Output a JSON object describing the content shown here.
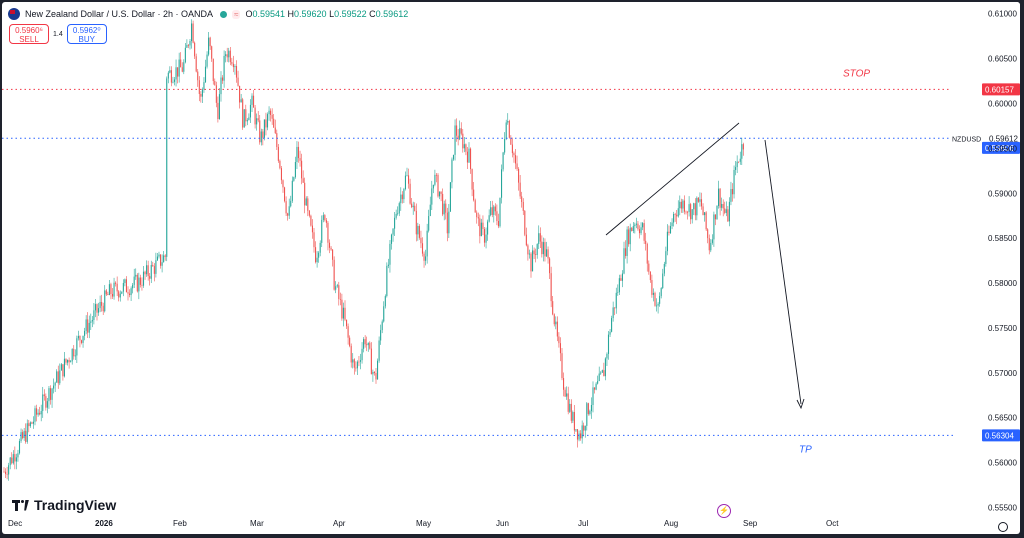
{
  "header": {
    "title": "New Zealand Dollar / U.S. Dollar · 2h · OANDA",
    "ohlc": {
      "o_label": "O",
      "o": "0.59541",
      "h_label": "H",
      "h": "0.59620",
      "l_label": "L",
      "l": "0.59522",
      "c_label": "C",
      "c": "0.59612"
    }
  },
  "trade": {
    "sell_price": "0.5960⁶",
    "sell_label": "SELL",
    "spread": "1.4",
    "buy_price": "0.5962⁰",
    "buy_label": "BUY"
  },
  "brand": {
    "name": "TradingView"
  },
  "chart_data": {
    "type": "candlestick",
    "symbol": "NZDUSD",
    "ylim": [
      0.5545,
      0.6113
    ],
    "y_ticks": [
      "0.61000",
      "0.60500",
      "0.60000",
      "0.59500",
      "0.59000",
      "0.58500",
      "0.58000",
      "0.57500",
      "0.57000",
      "0.56500",
      "0.56000",
      "0.55500"
    ],
    "x_ticks": [
      "Dec",
      "2026",
      "Feb",
      "Mar",
      "Apr",
      "May",
      "Jun",
      "Jul",
      "Aug",
      "Sep",
      "Oct"
    ],
    "price_path": [
      [
        "Dec",
        0.559
      ],
      [
        "Dec",
        0.569
      ],
      [
        "Dec",
        0.5745
      ],
      [
        "Dec",
        0.579
      ],
      [
        "Dec",
        0.58
      ],
      [
        "Dec",
        0.583
      ],
      [
        "2026",
        0.5785
      ],
      [
        "2026",
        0.5755
      ],
      [
        "2026",
        0.5795
      ],
      [
        "2026",
        0.585
      ],
      [
        "2026",
        0.58
      ],
      [
        "2026",
        0.574
      ],
      [
        "2026",
        0.577
      ],
      [
        "2026",
        0.576
      ],
      [
        "2026",
        0.58
      ],
      [
        "2026",
        0.583
      ],
      [
        "2026",
        0.59
      ],
      [
        "2026",
        0.596
      ],
      [
        "Feb",
        0.604
      ],
      [
        "Feb",
        0.609
      ],
      [
        "Feb",
        0.6
      ],
      [
        "Feb",
        0.607
      ],
      [
        "Feb",
        0.599
      ],
      [
        "Feb",
        0.606
      ],
      [
        "Feb",
        0.605
      ],
      [
        "Feb",
        0.598
      ],
      [
        "Feb",
        0.6
      ],
      [
        "Mar",
        0.596
      ],
      [
        "Mar",
        0.599
      ],
      [
        "Mar",
        0.594
      ],
      [
        "Mar",
        0.587
      ],
      [
        "Mar",
        0.595
      ],
      [
        "Mar",
        0.588
      ],
      [
        "Mar",
        0.583
      ],
      [
        "Mar",
        0.588
      ],
      [
        "Mar",
        0.58
      ],
      [
        "Apr",
        0.576
      ],
      [
        "Apr",
        0.57
      ],
      [
        "Apr",
        0.574
      ],
      [
        "Apr",
        0.569
      ],
      [
        "Apr",
        0.58
      ],
      [
        "Apr",
        0.588
      ],
      [
        "Apr",
        0.592
      ],
      [
        "Apr",
        0.586
      ],
      [
        "May",
        0.583
      ],
      [
        "May",
        0.592
      ],
      [
        "May",
        0.59
      ],
      [
        "May",
        0.586
      ],
      [
        "May",
        0.597
      ],
      [
        "May",
        0.596
      ],
      [
        "May",
        0.594
      ],
      [
        "May",
        0.587
      ],
      [
        "May",
        0.585
      ],
      [
        "May",
        0.588
      ],
      [
        "May",
        0.587
      ],
      [
        "Jun",
        0.599
      ],
      [
        "Jun",
        0.594
      ],
      [
        "Jun",
        0.588
      ],
      [
        "Jun",
        0.582
      ],
      [
        "Jun",
        0.585
      ],
      [
        "Jun",
        0.583
      ],
      [
        "Jun",
        0.575
      ],
      [
        "Jun",
        0.569
      ],
      [
        "Jun",
        0.565
      ],
      [
        "Jun",
        0.563
      ],
      [
        "Jul",
        0.566
      ],
      [
        "Jul",
        0.568
      ],
      [
        "Jul",
        0.57
      ],
      [
        "Jul",
        0.576
      ],
      [
        "Jul",
        0.58
      ],
      [
        "Jul",
        0.585
      ],
      [
        "Jul",
        0.587
      ],
      [
        "Jul",
        0.586
      ],
      [
        "Jul",
        0.58
      ],
      [
        "Jul",
        0.577
      ],
      [
        "Jul",
        0.584
      ],
      [
        "Aug",
        0.588
      ],
      [
        "Aug",
        0.589
      ],
      [
        "Aug",
        0.588
      ],
      [
        "Aug",
        0.589
      ],
      [
        "Aug",
        0.584
      ],
      [
        "Aug",
        0.59
      ],
      [
        "Aug",
        0.587
      ],
      [
        "Aug",
        0.593
      ],
      [
        "Aug",
        0.5961
      ]
    ],
    "last_price": "0.59606",
    "last_price_seconds": "",
    "symbol_close": "0.59612",
    "levels": {
      "stop": {
        "label": "STOP",
        "price": "0.60157",
        "color": "#f23645"
      },
      "tp": {
        "label": "TP",
        "price": "0.56304",
        "color": "#2962ff"
      },
      "last": {
        "label": "NZDUSD",
        "price": "0.59612",
        "color": "#2962ff"
      }
    },
    "annotations": {
      "trendline": {
        "from": [
          "Jul",
          0.584
        ],
        "to": [
          "Aug",
          0.5975
        ]
      },
      "arrow": {
        "from": [
          "Aug",
          0.5955
        ],
        "to": [
          "Sep",
          0.563
        ]
      }
    },
    "colors": {
      "up": "#26a69a",
      "down": "#ef5350"
    },
    "grid": false
  }
}
